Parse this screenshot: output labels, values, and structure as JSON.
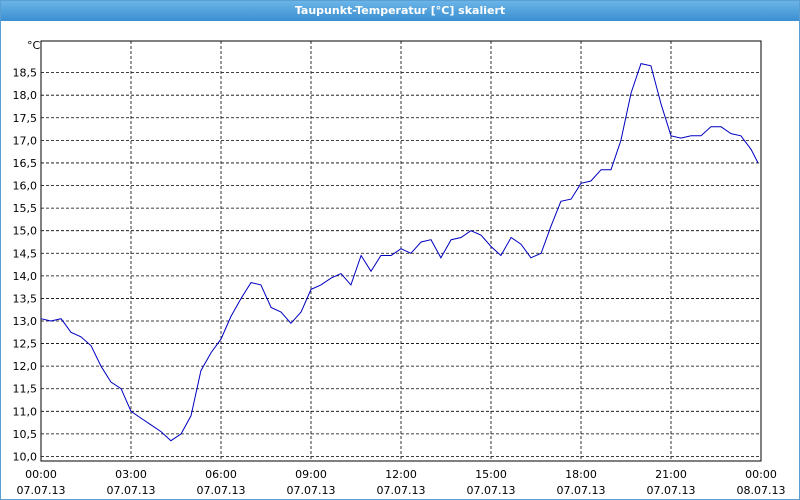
{
  "chart_data": {
    "type": "line",
    "title": "Taupunkt-Temperatur [°C] skaliert",
    "ylabel": "°C",
    "xlim": [
      0,
      24
    ],
    "ylim": [
      9.9,
      19.2
    ],
    "grid": true,
    "xticks": [
      {
        "value": 0,
        "label": "00:00"
      },
      {
        "value": 3,
        "label": "03:00"
      },
      {
        "value": 6,
        "label": "06:00"
      },
      {
        "value": 9,
        "label": "09:00"
      },
      {
        "value": 12,
        "label": "12:00"
      },
      {
        "value": 15,
        "label": "15:00"
      },
      {
        "value": 18,
        "label": "18:00"
      },
      {
        "value": 21,
        "label": "21:00"
      },
      {
        "value": 24,
        "label": "00:00"
      }
    ],
    "xtick_dates": [
      "07.07.13",
      "07.07.13",
      "07.07.13",
      "07.07.13",
      "07.07.13",
      "07.07.13",
      "07.07.13",
      "07.07.13",
      "08.07.13"
    ],
    "yticks": [
      {
        "value": 10,
        "label": "10,0"
      },
      {
        "value": 10.5,
        "label": "10,5"
      },
      {
        "value": 11,
        "label": "11,0"
      },
      {
        "value": 11.5,
        "label": "11,5"
      },
      {
        "value": 12,
        "label": "12,0"
      },
      {
        "value": 12.5,
        "label": "12,5"
      },
      {
        "value": 13,
        "label": "13,0"
      },
      {
        "value": 13.5,
        "label": "13,5"
      },
      {
        "value": 14,
        "label": "14,0"
      },
      {
        "value": 14.5,
        "label": "14,5"
      },
      {
        "value": 15,
        "label": "15,0"
      },
      {
        "value": 15.5,
        "label": "15,5"
      },
      {
        "value": 16,
        "label": "16,0"
      },
      {
        "value": 16.5,
        "label": "16,5"
      },
      {
        "value": 17,
        "label": "17,0"
      },
      {
        "value": 17.5,
        "label": "17,5"
      },
      {
        "value": 18,
        "label": "18,0"
      },
      {
        "value": 18.5,
        "label": "18,5"
      }
    ],
    "x": [
      0,
      0.33,
      0.67,
      1,
      1.33,
      1.67,
      2,
      2.33,
      2.67,
      3,
      3.33,
      3.67,
      4,
      4.33,
      4.67,
      5,
      5.33,
      5.67,
      6,
      6.33,
      6.67,
      7,
      7.33,
      7.67,
      8,
      8.33,
      8.67,
      9,
      9.33,
      9.67,
      10,
      10.33,
      10.67,
      11,
      11.33,
      11.67,
      12,
      12.33,
      12.67,
      13,
      13.33,
      13.67,
      14,
      14.33,
      14.67,
      15,
      15.33,
      15.67,
      16,
      16.33,
      16.67,
      17,
      17.33,
      17.67,
      18,
      18.33,
      18.67,
      19,
      19.33,
      19.67,
      20,
      20.33,
      20.67,
      21,
      21.33,
      21.67,
      22,
      22.33,
      22.67,
      23,
      23.33,
      23.67,
      23.9
    ],
    "series": [
      {
        "color": "#0000c0",
        "values": [
          13.05,
          13.0,
          13.05,
          12.75,
          12.65,
          12.45,
          12.0,
          11.65,
          11.5,
          11.0,
          10.85,
          10.7,
          10.55,
          10.35,
          10.5,
          10.9,
          11.9,
          12.3,
          12.6,
          13.1,
          13.5,
          13.85,
          13.8,
          13.3,
          13.2,
          12.95,
          13.2,
          13.7,
          13.8,
          13.95,
          14.05,
          13.8,
          14.45,
          14.1,
          14.45,
          14.45,
          14.6,
          14.5,
          14.75,
          14.8,
          14.4,
          14.8,
          14.85,
          15.0,
          14.9,
          14.65,
          14.45,
          14.85,
          14.7,
          14.4,
          14.5,
          15.1,
          15.65,
          15.7,
          16.05,
          16.1,
          16.35,
          16.35,
          17.0,
          18.05,
          18.7,
          18.65,
          17.8,
          17.1,
          17.05,
          17.1,
          17.1,
          17.3,
          17.3,
          17.15,
          17.1,
          16.8,
          16.5
        ]
      }
    ]
  }
}
